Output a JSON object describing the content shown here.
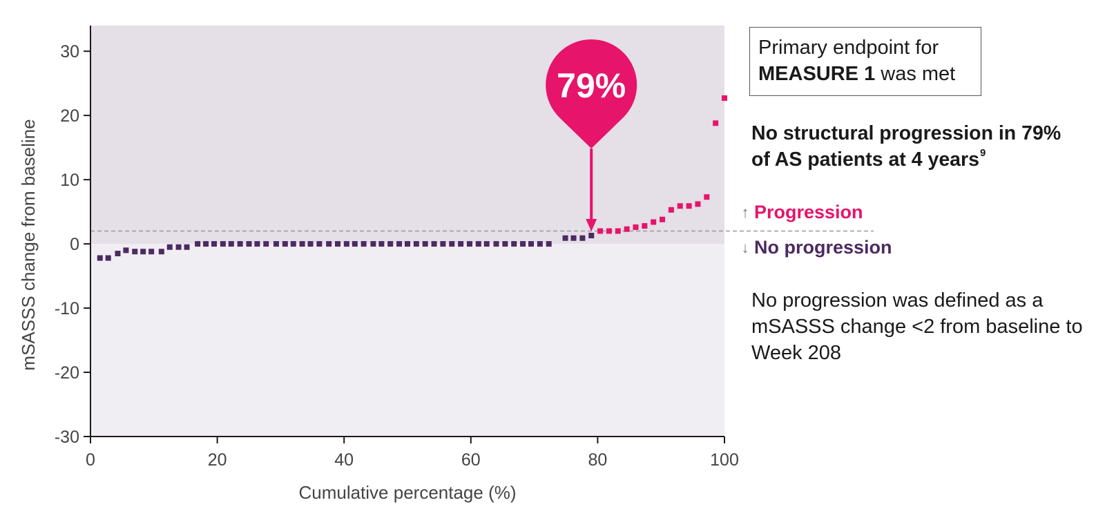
{
  "chart_data": {
    "type": "scatter",
    "xlabel": "Cumulative percentage (%)",
    "ylabel": "mSASSS change from baseline",
    "xlim": [
      0,
      100
    ],
    "ylim": [
      -30,
      34
    ],
    "x_ticks": [
      0,
      20,
      40,
      60,
      80,
      100
    ],
    "y_ticks": [
      -30,
      -20,
      -10,
      0,
      10,
      20,
      30
    ],
    "x_tick_labels": [
      "0",
      "20",
      "40",
      "60",
      "80",
      "100"
    ],
    "y_tick_labels": [
      "-30",
      "-20",
      "-10",
      "0",
      "10",
      "20",
      "30"
    ],
    "threshold": 2,
    "grid": false,
    "callout": {
      "label": "79%",
      "x": 79
    },
    "colors": {
      "no_progression": "#4d2a62",
      "progression": "#e6146a",
      "region_above_zero": "#e5dfe7",
      "region_below_zero": "#f1eef3",
      "threshold_line": "#999999"
    },
    "series": [
      {
        "x": [
          1.5,
          2.8,
          4.3,
          5.6,
          7.0,
          8.3,
          9.6,
          11.2,
          12.5,
          13.9,
          15.2,
          16.9,
          18.2,
          19.5,
          20.9,
          22.2,
          23.6,
          25.0,
          26.3,
          27.7,
          29.3,
          30.7,
          32.0,
          33.4,
          34.7,
          36.1,
          37.6,
          39.0,
          40.4,
          41.7,
          43.1,
          44.6,
          45.9,
          47.3,
          48.7,
          50.0,
          51.4,
          52.8,
          54.2,
          55.6,
          57.0,
          58.4,
          59.8,
          61.2,
          62.5,
          64.0,
          65.4,
          66.8,
          68.2,
          69.5,
          70.9,
          72.3,
          74.9,
          76.2,
          77.6,
          79.0
        ],
        "values": [
          -2.2,
          -2.2,
          -1.5,
          -1.0,
          -1.2,
          -1.2,
          -1.2,
          -1.2,
          -0.5,
          -0.5,
          -0.5,
          0,
          0,
          0,
          0,
          0,
          0,
          0,
          0,
          0,
          0,
          0,
          0,
          0,
          0,
          0,
          0,
          0,
          0,
          0,
          0,
          0,
          0,
          0,
          0,
          0,
          0,
          0,
          0,
          0,
          0,
          0,
          0,
          0,
          0,
          0,
          0,
          0,
          0,
          0,
          0,
          0,
          0.9,
          0.9,
          0.9,
          1.3
        ]
      },
      {
        "x": [
          80.4,
          81.8,
          83.2,
          84.6,
          86.0,
          87.4,
          88.8,
          90.2,
          91.6,
          93.0,
          94.4,
          95.8,
          97.2,
          98.6,
          100.0
        ],
        "values": [
          2.0,
          2.0,
          2.0,
          2.3,
          2.6,
          2.8,
          3.4,
          3.8,
          5.3,
          5.9,
          5.9,
          6.2,
          7.3,
          18.8,
          22.7
        ]
      }
    ]
  },
  "endpoint_box": {
    "line1": "Primary endpoint for",
    "line2_bold": "MEASURE 1",
    "line2_rest": " was met"
  },
  "headline": {
    "line1": "No structural progression in 79%",
    "line2": "of AS patients at 4 years",
    "footnote": "9"
  },
  "legend": {
    "progression": "Progression",
    "no_progression": "No progression",
    "up_arrow": "↑",
    "down_arrow": "↓"
  },
  "definition": "No progression was defined as a mSASSS change <2 from baseline to Week 208"
}
